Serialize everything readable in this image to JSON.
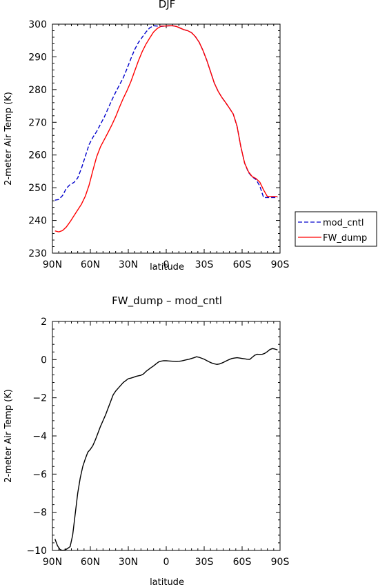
{
  "chart_data": [
    {
      "type": "line",
      "title": "DJF",
      "xlabel": "latitude",
      "ylabel": "2-meter Air Temp (K)",
      "xlim": [
        90,
        -90
      ],
      "ylim": [
        230,
        300
      ],
      "x_tick_values": [
        90,
        60,
        30,
        0,
        -30,
        -60,
        -90
      ],
      "x_tick_labels": [
        "90N",
        "60N",
        "30N",
        "0",
        "30S",
        "60S",
        "90S"
      ],
      "y_tick_values": [
        230,
        240,
        250,
        260,
        270,
        280,
        290,
        300
      ],
      "y_tick_labels": [
        "230",
        "240",
        "250",
        "260",
        "270",
        "280",
        "290",
        "300"
      ],
      "legend_position": "right",
      "x": [
        88,
        85,
        82,
        79,
        76,
        73,
        70,
        67,
        64,
        61,
        58,
        55,
        52,
        49,
        46,
        43,
        40,
        37,
        34,
        31,
        28,
        25,
        22,
        19,
        16,
        13,
        10,
        7,
        4,
        1,
        -2,
        -5,
        -8,
        -11,
        -14,
        -17,
        -20,
        -23,
        -26,
        -29,
        -32,
        -35,
        -38,
        -41,
        -44,
        -47,
        -50,
        -53,
        -56,
        -59,
        -62,
        -65,
        -68,
        -71,
        -74,
        -77,
        -80,
        -83,
        -86,
        -88
      ],
      "series": [
        {
          "name": "mod_cntl",
          "color": "#0000cc",
          "dash": "dashed",
          "values": [
            246.2,
            246.4,
            247.6,
            249.8,
            251.0,
            251.6,
            253.0,
            256.0,
            259.6,
            263.2,
            265.4,
            267.2,
            269.4,
            271.6,
            274.2,
            276.8,
            279.2,
            281.4,
            283.6,
            286.4,
            289.4,
            292.2,
            294.4,
            296.0,
            297.6,
            298.9,
            299.5,
            299.4,
            299.3,
            299.4,
            299.5,
            299.5,
            299.3,
            298.8,
            298.3,
            298.0,
            297.4,
            296.2,
            294.5,
            292.0,
            289.0,
            285.5,
            282.0,
            279.5,
            277.6,
            276.0,
            274.3,
            272.5,
            268.8,
            262.5,
            257.5,
            254.7,
            253.3,
            252.5,
            250.5,
            247.0,
            247.0,
            247.0,
            247.0,
            247.0
          ]
        },
        {
          "name": "FW_dump",
          "color": "#ff0000",
          "dash": "solid",
          "values": [
            236.8,
            236.5,
            236.9,
            238.0,
            239.6,
            241.4,
            243.2,
            245.0,
            247.4,
            250.8,
            255.3,
            259.5,
            262.5,
            264.7,
            266.9,
            269.2,
            271.7,
            274.6,
            277.3,
            279.7,
            282.4,
            285.6,
            288.8,
            291.6,
            293.9,
            295.8,
            297.6,
            298.7,
            299.4,
            299.4,
            299.5,
            299.5,
            299.3,
            298.8,
            298.3,
            298.0,
            297.4,
            296.2,
            294.5,
            292.0,
            289.0,
            285.5,
            282.0,
            279.5,
            277.6,
            276.0,
            274.3,
            272.5,
            268.8,
            262.5,
            257.5,
            254.9,
            253.4,
            252.8,
            251.7,
            249.3,
            247.3,
            247.3,
            247.3,
            247.3
          ]
        }
      ]
    },
    {
      "type": "line",
      "title": "FW_dump – mod_cntl",
      "xlabel": "latitude",
      "ylabel": "2-meter Air Temp (K)",
      "xlim": [
        90,
        -90
      ],
      "ylim": [
        -10,
        2
      ],
      "x_tick_values": [
        90,
        60,
        30,
        0,
        -30,
        -60,
        -90
      ],
      "x_tick_labels": [
        "90N",
        "60N",
        "30N",
        "0",
        "30S",
        "60S",
        "90S"
      ],
      "y_tick_values": [
        -10,
        -8,
        -6,
        -4,
        -2,
        0,
        2
      ],
      "y_tick_labels": [
        "−10",
        "−8",
        "−6",
        "−4",
        "−2",
        "0",
        "2"
      ],
      "x": [
        88,
        86,
        84,
        82,
        80,
        78,
        76,
        74,
        72,
        70,
        68,
        66,
        64,
        62,
        60,
        58,
        56,
        54,
        52,
        50,
        48,
        46,
        44,
        42,
        40,
        38,
        36,
        34,
        32,
        30,
        28,
        26,
        24,
        22,
        20,
        18,
        16,
        14,
        12,
        10,
        8,
        6,
        4,
        2,
        0,
        -2,
        -4,
        -6,
        -8,
        -10,
        -12,
        -14,
        -16,
        -18,
        -20,
        -22,
        -24,
        -26,
        -28,
        -30,
        -32,
        -34,
        -36,
        -38,
        -40,
        -42,
        -44,
        -46,
        -48,
        -50,
        -52,
        -54,
        -56,
        -58,
        -60,
        -62,
        -64,
        -66,
        -68,
        -70,
        -72,
        -74,
        -76,
        -78,
        -80,
        -82,
        -84,
        -86,
        -88
      ],
      "series": [
        {
          "color": "#000000",
          "dash": "solid",
          "values": [
            -9.4,
            -9.75,
            -9.95,
            -10.0,
            -9.97,
            -9.9,
            -9.8,
            -9.2,
            -8.1,
            -7.0,
            -6.2,
            -5.6,
            -5.2,
            -4.85,
            -4.7,
            -4.5,
            -4.2,
            -3.85,
            -3.5,
            -3.2,
            -2.9,
            -2.55,
            -2.2,
            -1.85,
            -1.65,
            -1.5,
            -1.35,
            -1.2,
            -1.1,
            -1.0,
            -0.97,
            -0.93,
            -0.88,
            -0.85,
            -0.82,
            -0.75,
            -0.62,
            -0.52,
            -0.42,
            -0.33,
            -0.22,
            -0.12,
            -0.08,
            -0.06,
            -0.06,
            -0.07,
            -0.08,
            -0.09,
            -0.1,
            -0.09,
            -0.07,
            -0.04,
            -0.01,
            0.02,
            0.06,
            0.1,
            0.15,
            0.12,
            0.07,
            0.02,
            -0.05,
            -0.12,
            -0.18,
            -0.22,
            -0.25,
            -0.23,
            -0.18,
            -0.12,
            -0.05,
            0.01,
            0.06,
            0.08,
            0.1,
            0.08,
            0.06,
            0.04,
            0.02,
            0.01,
            0.12,
            0.23,
            0.28,
            0.27,
            0.28,
            0.33,
            0.42,
            0.53,
            0.58,
            0.55,
            0.51
          ]
        }
      ]
    }
  ]
}
